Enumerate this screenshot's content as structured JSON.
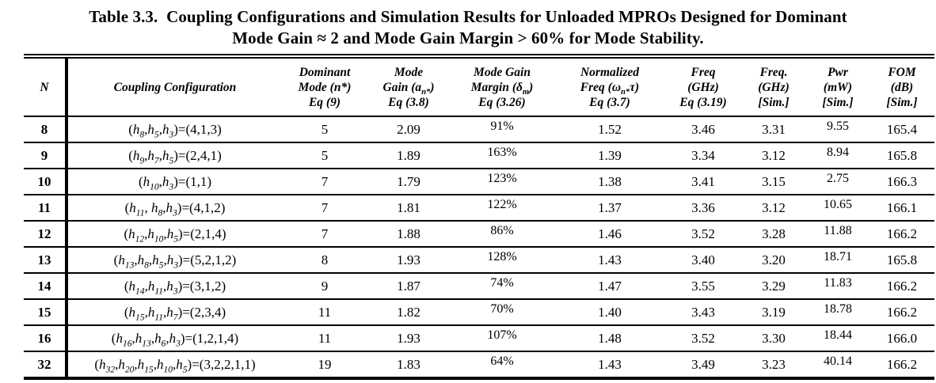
{
  "title": {
    "line1": "Table 3.3.  Coupling Configurations and Simulation Results for Unloaded MPROs Designed for Dominant",
    "line2": "Mode Gain ≈ 2 and Mode Gain Margin > 60% for Mode Stability."
  },
  "table": {
    "columns": [
      {
        "id": "n",
        "lines": [
          "N"
        ]
      },
      {
        "id": "coupling",
        "lines": [
          "Coupling Configuration"
        ]
      },
      {
        "id": "dominant_mode",
        "lines": [
          "Dominant",
          "Mode (n*)",
          "Eq (9)"
        ]
      },
      {
        "id": "mode_gain",
        "lines": [
          "Mode",
          "Gain (a~n*~)",
          "Eq (3.8)"
        ]
      },
      {
        "id": "gain_margin",
        "lines": [
          "Mode Gain",
          "Margin (δ~m~)",
          "Eq (3.26)"
        ]
      },
      {
        "id": "norm_freq",
        "lines": [
          "Normalized",
          "Freq (ω~n*~τ)",
          "Eq (3.7)"
        ]
      },
      {
        "id": "freq_eq",
        "lines": [
          "Freq",
          "(GHz)",
          "Eq (3.19)"
        ]
      },
      {
        "id": "freq_sim",
        "lines": [
          "Freq.",
          "(GHz)",
          "[Sim.]"
        ]
      },
      {
        "id": "pwr_sim",
        "lines": [
          "Pwr",
          "(mW)",
          "[Sim.]"
        ]
      },
      {
        "id": "fom_sim",
        "lines": [
          "FOM",
          "(dB)",
          "[Sim.]"
        ]
      }
    ],
    "rows": [
      {
        "n": "8",
        "coupling": "(h8,h5,h3)=(4,1,3)",
        "dominant_mode": "5",
        "mode_gain": "2.09",
        "gain_margin": "91%",
        "norm_freq": "1.52",
        "freq_eq": "3.46",
        "freq_sim": "3.31",
        "pwr_sim": "9.55",
        "fom_sim": "165.4"
      },
      {
        "n": "9",
        "coupling": "(h9,h7,h5)=(2,4,1)",
        "dominant_mode": "5",
        "mode_gain": "1.89",
        "gain_margin": "163%",
        "norm_freq": "1.39",
        "freq_eq": "3.34",
        "freq_sim": "3.12",
        "pwr_sim": "8.94",
        "fom_sim": "165.8"
      },
      {
        "n": "10",
        "coupling": "(h10,h3)=(1,1)",
        "dominant_mode": "7",
        "mode_gain": "1.79",
        "gain_margin": "123%",
        "norm_freq": "1.38",
        "freq_eq": "3.41",
        "freq_sim": "3.15",
        "pwr_sim": "2.75",
        "fom_sim": "166.3"
      },
      {
        "n": "11",
        "coupling": "(h11, h8,h3)=(4,1,2)",
        "dominant_mode": "7",
        "mode_gain": "1.81",
        "gain_margin": "122%",
        "norm_freq": "1.37",
        "freq_eq": "3.36",
        "freq_sim": "3.12",
        "pwr_sim": "10.65",
        "fom_sim": "166.1"
      },
      {
        "n": "12",
        "coupling": "(h12,h10,h5)=(2,1,4)",
        "dominant_mode": "7",
        "mode_gain": "1.88",
        "gain_margin": "86%",
        "norm_freq": "1.46",
        "freq_eq": "3.52",
        "freq_sim": "3.28",
        "pwr_sim": "11.88",
        "fom_sim": "166.2"
      },
      {
        "n": "13",
        "coupling": "(h13,h8,h5,h3)=(5,2,1,2)",
        "dominant_mode": "8",
        "mode_gain": "1.93",
        "gain_margin": "128%",
        "norm_freq": "1.43",
        "freq_eq": "3.40",
        "freq_sim": "3.20",
        "pwr_sim": "18.71",
        "fom_sim": "165.8"
      },
      {
        "n": "14",
        "coupling": "(h14,h11,h3)=(3,1,2)",
        "dominant_mode": "9",
        "mode_gain": "1.87",
        "gain_margin": "74%",
        "norm_freq": "1.47",
        "freq_eq": "3.55",
        "freq_sim": "3.29",
        "pwr_sim": "11.83",
        "fom_sim": "166.2"
      },
      {
        "n": "15",
        "coupling": "(h15,h11,h7)=(2,3,4)",
        "dominant_mode": "11",
        "mode_gain": "1.82",
        "gain_margin": "70%",
        "norm_freq": "1.40",
        "freq_eq": "3.43",
        "freq_sim": "3.19",
        "pwr_sim": "18.78",
        "fom_sim": "166.2"
      },
      {
        "n": "16",
        "coupling": "(h16,h13,h6,h3)=(1,2,1,4)",
        "dominant_mode": "11",
        "mode_gain": "1.93",
        "gain_margin": "107%",
        "norm_freq": "1.48",
        "freq_eq": "3.52",
        "freq_sim": "3.30",
        "pwr_sim": "18.44",
        "fom_sim": "166.0"
      },
      {
        "n": "32",
        "coupling": "(h32,h20,h15,h10,h5)=(3,2,2,1,1)",
        "dominant_mode": "19",
        "mode_gain": "1.83",
        "gain_margin": "64%",
        "norm_freq": "1.43",
        "freq_eq": "3.49",
        "freq_sim": "3.23",
        "pwr_sim": "40.14",
        "fom_sim": "166.2"
      }
    ]
  }
}
